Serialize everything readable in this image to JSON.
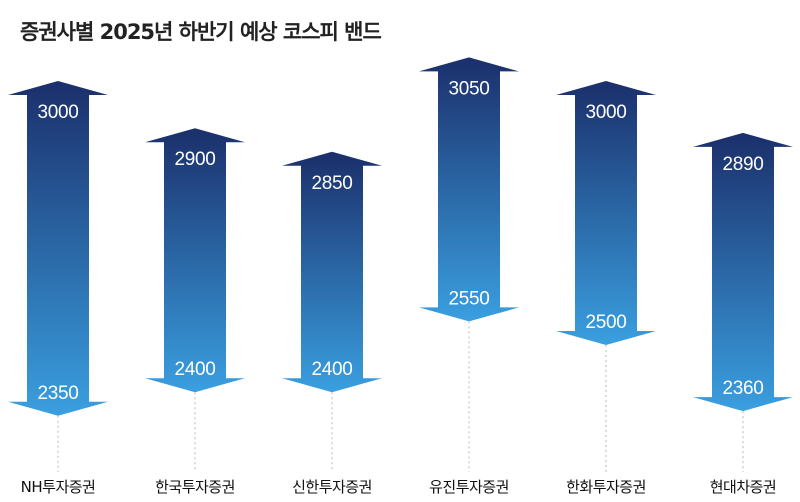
{
  "chart_data": {
    "type": "range-bar",
    "title": "증권사별 2025년 하반기 예상 코스피 밴드",
    "xlabel": "",
    "ylabel": "",
    "ylim": [
      2300,
      3100
    ],
    "categories": [
      "NH투자증권",
      "한국투자증권",
      "신한투자증권",
      "유진투자증권",
      "한화투자증권",
      "현대차증권"
    ],
    "series": [
      {
        "name": "상단",
        "values": [
          3000,
          2900,
          2850,
          3050,
          3000,
          2890
        ]
      },
      {
        "name": "하단",
        "values": [
          2350,
          2400,
          2400,
          2550,
          2500,
          2360
        ]
      }
    ],
    "colors": {
      "top": "#1b2f6b",
      "bottom": "#3a9fe0",
      "leader": "#b8b8b8",
      "text": "#ffffff"
    }
  }
}
